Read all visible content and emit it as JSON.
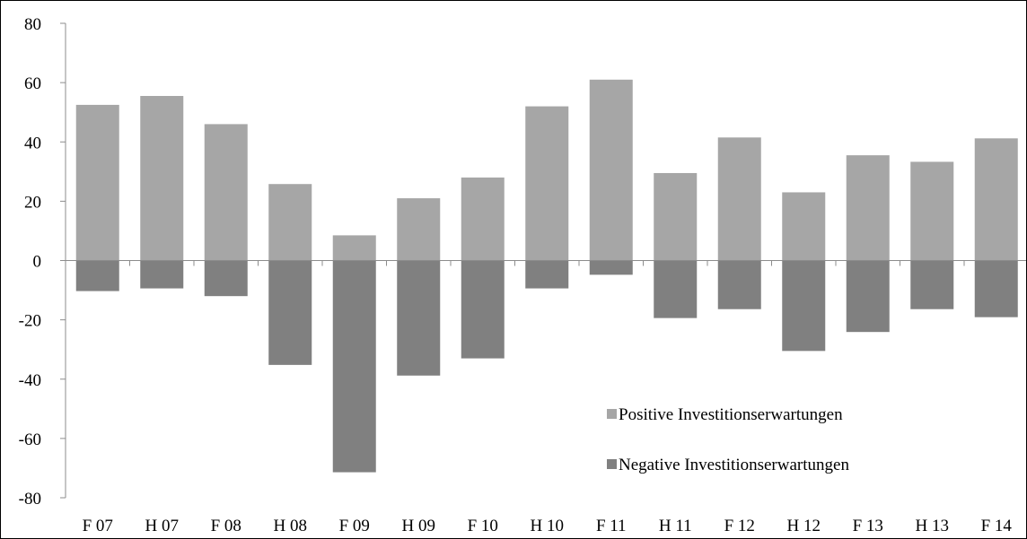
{
  "chart_data": {
    "type": "bar",
    "stacked": "diverging",
    "categories": [
      "F 07",
      "H 07",
      "F 08",
      "H 08",
      "F 09",
      "H 09",
      "F 10",
      "H 10",
      "F 11",
      "H 11",
      "F 12",
      "H 12",
      "F 13",
      "H 13",
      "F 14"
    ],
    "series": [
      {
        "name": "Positive Investitionserwartungen",
        "color": "#a6a6a6",
        "values": [
          52.5,
          55.5,
          46,
          25.8,
          8.5,
          21,
          28,
          52,
          61,
          29.5,
          41.5,
          23,
          35.5,
          33.3,
          41.2
        ]
      },
      {
        "name": "Negative Investitionserwartungen",
        "color": "#808080",
        "values": [
          -10.3,
          -9.4,
          -12,
          -35.2,
          -71.4,
          -38.8,
          -33,
          -9.4,
          -4.8,
          -19.4,
          -16.4,
          -30.5,
          -24.1,
          -16.4,
          -19.1
        ]
      }
    ],
    "ylim": [
      -80,
      80
    ],
    "yticks": [
      "80",
      "60",
      "40",
      "20",
      "0",
      "-20",
      "-40",
      "-60",
      "-80"
    ],
    "xlabel": "",
    "ylabel": "",
    "title": "",
    "grid": false,
    "legend_position": "lower-right"
  }
}
